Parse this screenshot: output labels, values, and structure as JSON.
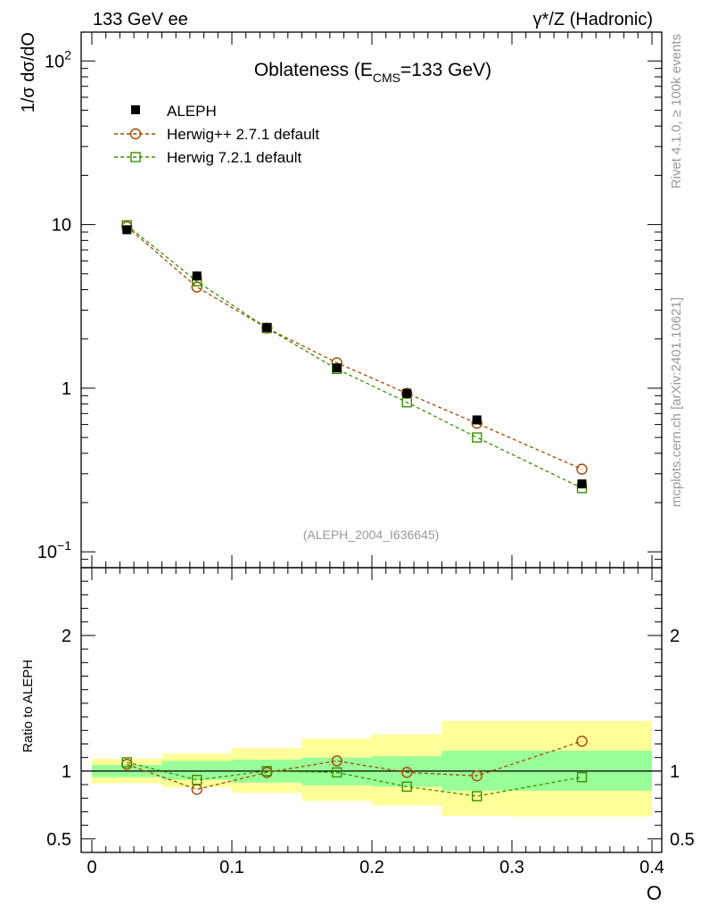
{
  "header": {
    "left": "133 GeV ee",
    "right": "γ*/Z (Hadronic)"
  },
  "side_labels": {
    "rivet": "Rivet 4.1.0, ≥ 100k events",
    "mcplots": "mcplots.cern.ch [arXiv:2401.10621]"
  },
  "chart_data": [
    {
      "type": "line",
      "panel": "main",
      "title_main": "Oblateness (E",
      "title_sub": "CMS",
      "title_tail": "=133 GeV)",
      "analysis_id": "(ALEPH_2004_I636645)",
      "ylabel": "1/σ  dσ/dO",
      "yscale": "log",
      "ylim": [
        0.08,
        150
      ],
      "xlim": [
        0,
        0.4
      ],
      "yticks_major": [
        {
          "value": 0.1,
          "base": "10",
          "exp": "−1"
        },
        {
          "value": 1,
          "base": "1",
          "exp": ""
        },
        {
          "value": 10,
          "base": "10",
          "exp": ""
        },
        {
          "value": 100,
          "base": "10",
          "exp": "2"
        }
      ],
      "legend": "top-left",
      "x": [
        0.025,
        0.075,
        0.125,
        0.175,
        0.225,
        0.275,
        0.35
      ],
      "series": [
        {
          "name": "ALEPH",
          "marker": "filled-square",
          "color": "#000000",
          "values": [
            9.3,
            4.85,
            2.35,
            1.33,
            0.93,
            0.64,
            0.26
          ]
        },
        {
          "name": "Herwig++ 2.7.1 default",
          "marker": "open-circle",
          "color": "#a84800",
          "values": [
            9.7,
            4.15,
            2.33,
            1.43,
            0.93,
            0.61,
            0.32
          ]
        },
        {
          "name": "Herwig 7.2.1 default",
          "marker": "open-square",
          "color": "#3a9000",
          "values": [
            9.9,
            4.5,
            2.33,
            1.31,
            0.82,
            0.5,
            0.245
          ]
        }
      ]
    },
    {
      "type": "line",
      "panel": "ratio",
      "ylabel": "Ratio to ALEPH",
      "ylim": [
        0.4,
        2.5
      ],
      "xlabel": "O",
      "xticks": [
        0,
        0.1,
        0.2,
        0.3,
        0.4
      ],
      "xtick_labels": [
        "0",
        "0.1",
        "0.2",
        "0.3",
        "0.4"
      ],
      "yticks": [
        0.5,
        1,
        2
      ],
      "ytick_labels": [
        "0.5",
        "1",
        "2"
      ],
      "bins": [
        [
          0.0,
          0.05
        ],
        [
          0.05,
          0.1
        ],
        [
          0.1,
          0.15
        ],
        [
          0.15,
          0.2
        ],
        [
          0.2,
          0.25
        ],
        [
          0.25,
          0.3
        ],
        [
          0.3,
          0.4
        ]
      ],
      "band_inner": [
        [
          0.955,
          1.045
        ],
        [
          0.935,
          1.075
        ],
        [
          0.915,
          1.085
        ],
        [
          0.895,
          1.1
        ],
        [
          0.885,
          1.11
        ],
        [
          0.855,
          1.15
        ],
        [
          0.855,
          1.15
        ]
      ],
      "band_outer": [
        [
          0.91,
          1.09
        ],
        [
          0.88,
          1.13
        ],
        [
          0.84,
          1.17
        ],
        [
          0.78,
          1.24
        ],
        [
          0.745,
          1.27
        ],
        [
          0.67,
          1.37
        ],
        [
          0.665,
          1.37
        ]
      ],
      "band_inner_color": "#99ff99",
      "band_outer_color": "#ffff99",
      "x": [
        0.025,
        0.075,
        0.125,
        0.175,
        0.225,
        0.275,
        0.35
      ],
      "series": [
        {
          "name": "Herwig++ 2.7.1 default",
          "marker": "open-circle",
          "color": "#a84800",
          "values": [
            1.05,
            0.865,
            0.99,
            1.075,
            0.99,
            0.965,
            1.22
          ]
        },
        {
          "name": "Herwig 7.2.1 default",
          "marker": "open-square",
          "color": "#3a9000",
          "values": [
            1.065,
            0.935,
            1.0,
            0.99,
            0.885,
            0.815,
            0.955
          ]
        }
      ]
    }
  ]
}
